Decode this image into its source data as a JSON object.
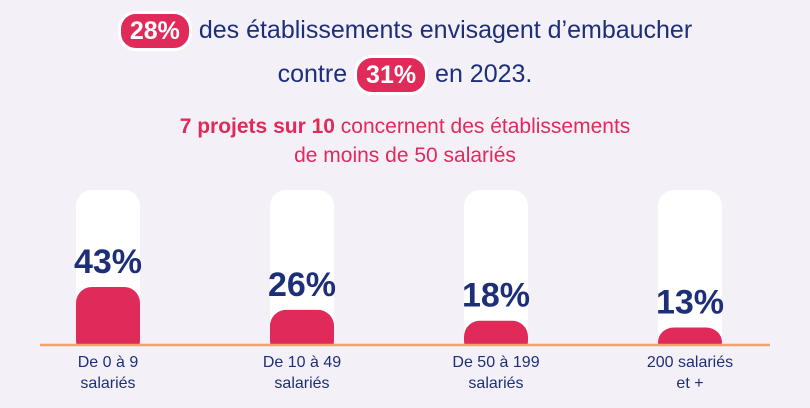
{
  "headline": {
    "highlight_1": "28%",
    "line_1_text": "des établissements envisagent d’embaucher",
    "line_2_prefix": "contre",
    "highlight_2": "31%",
    "line_2_suffix": "en 2023."
  },
  "subheadline": {
    "bold": "7 projets sur 10",
    "rest_line_1": "concernent des établissements",
    "line_2": "de moins de 50 salariés"
  },
  "colors": {
    "accent": "#e02a5a",
    "text_dark": "#1e2f7a",
    "baseline": "#f0a36b",
    "track": "#ffffff",
    "background": "#f3f0f8"
  },
  "chart_data": {
    "type": "bar",
    "categories": [
      "De 0 à 9 salariés",
      "De 10 à 49 salariés",
      "De 50 à 199 salariés",
      "200 salariés et +"
    ],
    "category_lines": [
      [
        "De 0 à 9",
        "salariés"
      ],
      [
        "De 10 à 49",
        "salariés"
      ],
      [
        "De 50 à 199",
        "salariés"
      ],
      [
        "200 salariés",
        "et +"
      ]
    ],
    "values": [
      43,
      26,
      18,
      13
    ],
    "value_labels": [
      "43%",
      "26%",
      "18%",
      "13%"
    ],
    "ylim": [
      0,
      100
    ],
    "grid": false
  }
}
